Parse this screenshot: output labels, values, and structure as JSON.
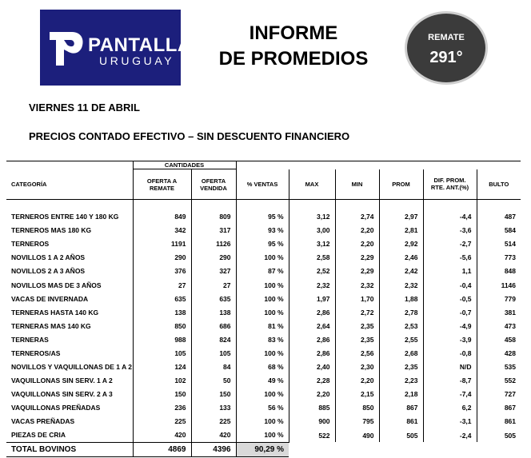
{
  "logo": {
    "brand": "PANTALLA",
    "registered": "®",
    "sub": "URUGUAY"
  },
  "title": {
    "line1": "INFORME",
    "line2": "DE PROMEDIOS"
  },
  "badge": {
    "label": "REMATE",
    "number": "291°"
  },
  "date": "VIERNES 11 DE ABRIL",
  "subtitle": "PRECIOS CONTADO EFECTIVO – SIN DESCUENTO FINANCIERO",
  "table": {
    "group_header": "CANTIDADES",
    "headers": {
      "categoria": "CATEGORÍA",
      "oferta_remate": [
        "OFERTA A",
        "REMATE"
      ],
      "oferta_vendida": [
        "OFERTA",
        "VENDIDA"
      ],
      "ventas": "% VENTAS",
      "max": "MAX",
      "min": "MIN",
      "prom": "PROM",
      "dif": [
        "DIF. PROM.",
        "RTE. ANT.(%)"
      ],
      "bulto": "BULTO"
    },
    "rows": [
      {
        "cat": "TERNEROS ENTRE 140 Y 180 KG",
        "remate": "849",
        "vendida": "809",
        "pct": "95 %",
        "max": "3,12",
        "min": "2,74",
        "prom": "2,97",
        "dif": "-4,4",
        "bulto": "487"
      },
      {
        "cat": "TERNEROS MAS 180 KG",
        "remate": "342",
        "vendida": "317",
        "pct": "93 %",
        "max": "3,00",
        "min": "2,20",
        "prom": "2,81",
        "dif": "-3,6",
        "bulto": "584"
      },
      {
        "cat": "TERNEROS",
        "remate": "1191",
        "vendida": "1126",
        "pct": "95 %",
        "max": "3,12",
        "min": "2,20",
        "prom": "2,92",
        "dif": "-2,7",
        "bulto": "514"
      },
      {
        "cat": "NOVILLOS 1 A 2 AÑOS",
        "remate": "290",
        "vendida": "290",
        "pct": "100 %",
        "max": "2,58",
        "min": "2,29",
        "prom": "2,46",
        "dif": "-5,6",
        "bulto": "773"
      },
      {
        "cat": "NOVILLOS 2 A 3 AÑOS",
        "remate": "376",
        "vendida": "327",
        "pct": "87 %",
        "max": "2,52",
        "min": "2,29",
        "prom": "2,42",
        "dif": "1,1",
        "bulto": "848"
      },
      {
        "cat": "NOVILLOS MAS DE 3 AÑOS",
        "remate": "27",
        "vendida": "27",
        "pct": "100 %",
        "max": "2,32",
        "min": "2,32",
        "prom": "2,32",
        "dif": "-0,4",
        "bulto": "1146"
      },
      {
        "cat": "VACAS DE INVERNADA",
        "remate": "635",
        "vendida": "635",
        "pct": "100 %",
        "max": "1,97",
        "min": "1,70",
        "prom": "1,88",
        "dif": "-0,5",
        "bulto": "779"
      },
      {
        "cat": "TERNERAS HASTA 140 KG",
        "remate": "138",
        "vendida": "138",
        "pct": "100 %",
        "max": "2,86",
        "min": "2,72",
        "prom": "2,78",
        "dif": "-0,7",
        "bulto": "381"
      },
      {
        "cat": "TERNERAS MAS 140 KG",
        "remate": "850",
        "vendida": "686",
        "pct": "81 %",
        "max": "2,64",
        "min": "2,35",
        "prom": "2,53",
        "dif": "-4,9",
        "bulto": "473"
      },
      {
        "cat": "TERNERAS",
        "remate": "988",
        "vendida": "824",
        "pct": "83 %",
        "max": "2,86",
        "min": "2,35",
        "prom": "2,55",
        "dif": "-3,9",
        "bulto": "458"
      },
      {
        "cat": "TERNEROS/AS",
        "remate": "105",
        "vendida": "105",
        "pct": "100 %",
        "max": "2,86",
        "min": "2,56",
        "prom": "2,68",
        "dif": "-0,8",
        "bulto": "428"
      },
      {
        "cat": "NOVILLOS Y VAQUILLONAS DE 1 A 2",
        "remate": "124",
        "vendida": "84",
        "pct": "68 %",
        "max": "2,40",
        "min": "2,30",
        "prom": "2,35",
        "dif": "N/D",
        "bulto": "535"
      },
      {
        "cat": "VAQUILLONAS SIN SERV. 1 A 2",
        "remate": "102",
        "vendida": "50",
        "pct": "49 %",
        "max": "2,28",
        "min": "2,20",
        "prom": "2,23",
        "dif": "-8,7",
        "bulto": "552"
      },
      {
        "cat": "VAQUILLONAS SIN SERV. 2 A 3",
        "remate": "150",
        "vendida": "150",
        "pct": "100 %",
        "max": "2,20",
        "min": "2,15",
        "prom": "2,18",
        "dif": "-7,4",
        "bulto": "727"
      },
      {
        "cat": "VAQUILLONAS PREÑADAS",
        "remate": "236",
        "vendida": "133",
        "pct": "56 %",
        "max": "885",
        "min": "850",
        "prom": "867",
        "dif": "6,2",
        "bulto": "867"
      },
      {
        "cat": "VACAS PREÑADAS",
        "remate": "225",
        "vendida": "225",
        "pct": "100 %",
        "max": "900",
        "min": "795",
        "prom": "861",
        "dif": "-3,1",
        "bulto": "861"
      },
      {
        "cat": "PIEZAS DE CRIA",
        "remate": "420",
        "vendida": "420",
        "pct": "100 %",
        "max": "522",
        "min": "490",
        "prom": "505",
        "dif": "-2,4",
        "bulto": "505"
      }
    ],
    "total": {
      "cat": "TOTAL BOVINOS",
      "remate": "4869",
      "vendida": "4396",
      "pct": "90,29 %"
    }
  }
}
